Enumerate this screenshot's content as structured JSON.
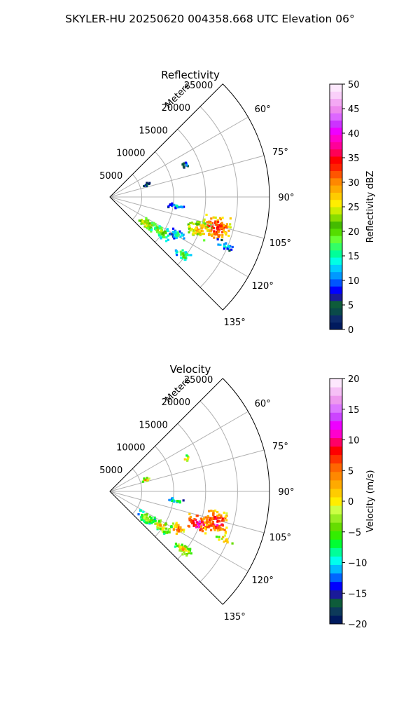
{
  "suptitle": "SKYLER-HU  20250620  004358.668 UTC Elevation 06°",
  "chart_data": [
    {
      "type": "polar-ppi",
      "title": "Reflectivity",
      "range_label": "Meters",
      "range_ticks": [
        5000,
        10000,
        15000,
        20000,
        25000
      ],
      "range_tick_labels": [
        "5000",
        "10000",
        "15000",
        "20000",
        "25000"
      ],
      "theta_ticks": [
        45,
        60,
        75,
        90,
        105,
        120,
        135
      ],
      "theta_tick_labels": [
        "60°",
        "75°",
        "90°",
        "105°",
        "120°",
        "135°"
      ],
      "theta_range": [
        45,
        135
      ],
      "r_max": 25000,
      "grid": true,
      "colorbar": {
        "label": "Reflectivity dBZ",
        "min": 0,
        "max": 50,
        "ticks": [
          0,
          5,
          10,
          15,
          20,
          25,
          30,
          35,
          40,
          45,
          50
        ],
        "tick_labels": [
          "0",
          "5",
          "10",
          "15",
          "20",
          "25",
          "30",
          "35",
          "40",
          "45",
          "50"
        ],
        "colors": [
          "#001a5e",
          "#0d2a6b",
          "#0a4a4a",
          "#0e5c3a",
          "#1a1a99",
          "#0000ff",
          "#0055ff",
          "#0099ff",
          "#00ccff",
          "#00ffe5",
          "#00ff99",
          "#33ff66",
          "#66ff33",
          "#55dd00",
          "#44bb00",
          "#88dd00",
          "#ccee00",
          "#ffee00",
          "#ffcc00",
          "#ffaa00",
          "#ff8800",
          "#ff5500",
          "#ff2200",
          "#ff0000",
          "#ff0055",
          "#ff0099",
          "#ff00cc",
          "#ee00ff",
          "#cc33ff",
          "#dd66ff",
          "#ee88ee",
          "#f4a8f4",
          "#fad0fa",
          "#fde8fd"
        ]
      },
      "echoes": [
        {
          "bearing": 126,
          "range": 7000,
          "spread_deg": 6,
          "spread_r": 1400,
          "value": 28
        },
        {
          "bearing": 124,
          "range": 9800,
          "spread_deg": 5,
          "spread_r": 1600,
          "value": 24
        },
        {
          "bearing": 119,
          "range": 12200,
          "spread_deg": 4,
          "spread_r": 1200,
          "value": 18
        },
        {
          "bearing": 128,
          "range": 14600,
          "spread_deg": 3,
          "spread_r": 1500,
          "value": 22
        },
        {
          "bearing": 110,
          "range": 14800,
          "spread_deg": 5,
          "spread_r": 2000,
          "value": 30
        },
        {
          "bearing": 106,
          "range": 17400,
          "spread_deg": 6,
          "spread_r": 2200,
          "value": 36
        },
        {
          "bearing": 113,
          "range": 19500,
          "spread_deg": 2,
          "spread_r": 1600,
          "value": 16
        },
        {
          "bearing": 67,
          "range": 13000,
          "spread_deg": 2,
          "spread_r": 800,
          "value": 12
        },
        {
          "bearing": 72,
          "range": 6000,
          "spread_deg": 3,
          "spread_r": 700,
          "value": 10
        },
        {
          "bearing": 98,
          "range": 10500,
          "spread_deg": 2,
          "spread_r": 1200,
          "value": 17
        }
      ]
    },
    {
      "type": "polar-ppi",
      "title": "Velocity",
      "range_label": "Meters",
      "range_ticks": [
        5000,
        10000,
        15000,
        20000,
        25000
      ],
      "range_tick_labels": [
        "5000",
        "10000",
        "15000",
        "20000",
        "25000"
      ],
      "theta_ticks": [
        45,
        60,
        75,
        90,
        105,
        120,
        135
      ],
      "theta_tick_labels": [
        "60°",
        "75°",
        "90°",
        "105°",
        "120°",
        "135°"
      ],
      "theta_range": [
        45,
        135
      ],
      "r_max": 25000,
      "grid": true,
      "colorbar": {
        "label": "Velocity (m/s)",
        "min": -20,
        "max": 20,
        "ticks": [
          -20,
          -15,
          -10,
          -5,
          0,
          5,
          10,
          15,
          20
        ],
        "tick_labels": [
          "−20",
          "−15",
          "−10",
          "−5",
          "0",
          "5",
          "10",
          "15",
          "20"
        ],
        "colors": [
          "#001a5e",
          "#0d3a5a",
          "#0e5c3a",
          "#1a1a99",
          "#0000ff",
          "#0066ff",
          "#00bbff",
          "#00ffee",
          "#00ff99",
          "#00ff33",
          "#33ee00",
          "#66dd00",
          "#99ee22",
          "#ccff44",
          "#ffee00",
          "#ffcc00",
          "#ffaa00",
          "#ff8800",
          "#ff6600",
          "#ff3300",
          "#ff0000",
          "#ff0066",
          "#ff00cc",
          "#ee00ff",
          "#cc44ff",
          "#dd77ff",
          "#ee99ee",
          "#f6c0f6",
          "#fde8fd"
        ]
      },
      "echoes": [
        {
          "bearing": 126,
          "range": 7000,
          "spread_deg": 6,
          "spread_r": 1400,
          "value": 0
        },
        {
          "bearing": 124,
          "range": 9800,
          "spread_deg": 5,
          "spread_r": 1600,
          "value": 4
        },
        {
          "bearing": 119,
          "range": 12200,
          "spread_deg": 4,
          "spread_r": 1200,
          "value": 8
        },
        {
          "bearing": 128,
          "range": 14600,
          "spread_deg": 3,
          "spread_r": 1500,
          "value": 4
        },
        {
          "bearing": 110,
          "range": 14800,
          "spread_deg": 5,
          "spread_r": 2000,
          "value": 13
        },
        {
          "bearing": 106,
          "range": 17400,
          "spread_deg": 6,
          "spread_r": 2200,
          "value": 11
        },
        {
          "bearing": 113,
          "range": 19500,
          "spread_deg": 2,
          "spread_r": 1600,
          "value": 3
        },
        {
          "bearing": 67,
          "range": 13000,
          "spread_deg": 2,
          "spread_r": 800,
          "value": 4
        },
        {
          "bearing": 72,
          "range": 6000,
          "spread_deg": 3,
          "spread_r": 700,
          "value": 6
        },
        {
          "bearing": 98,
          "range": 10500,
          "spread_deg": 2,
          "spread_r": 1200,
          "value": -3
        }
      ]
    }
  ]
}
